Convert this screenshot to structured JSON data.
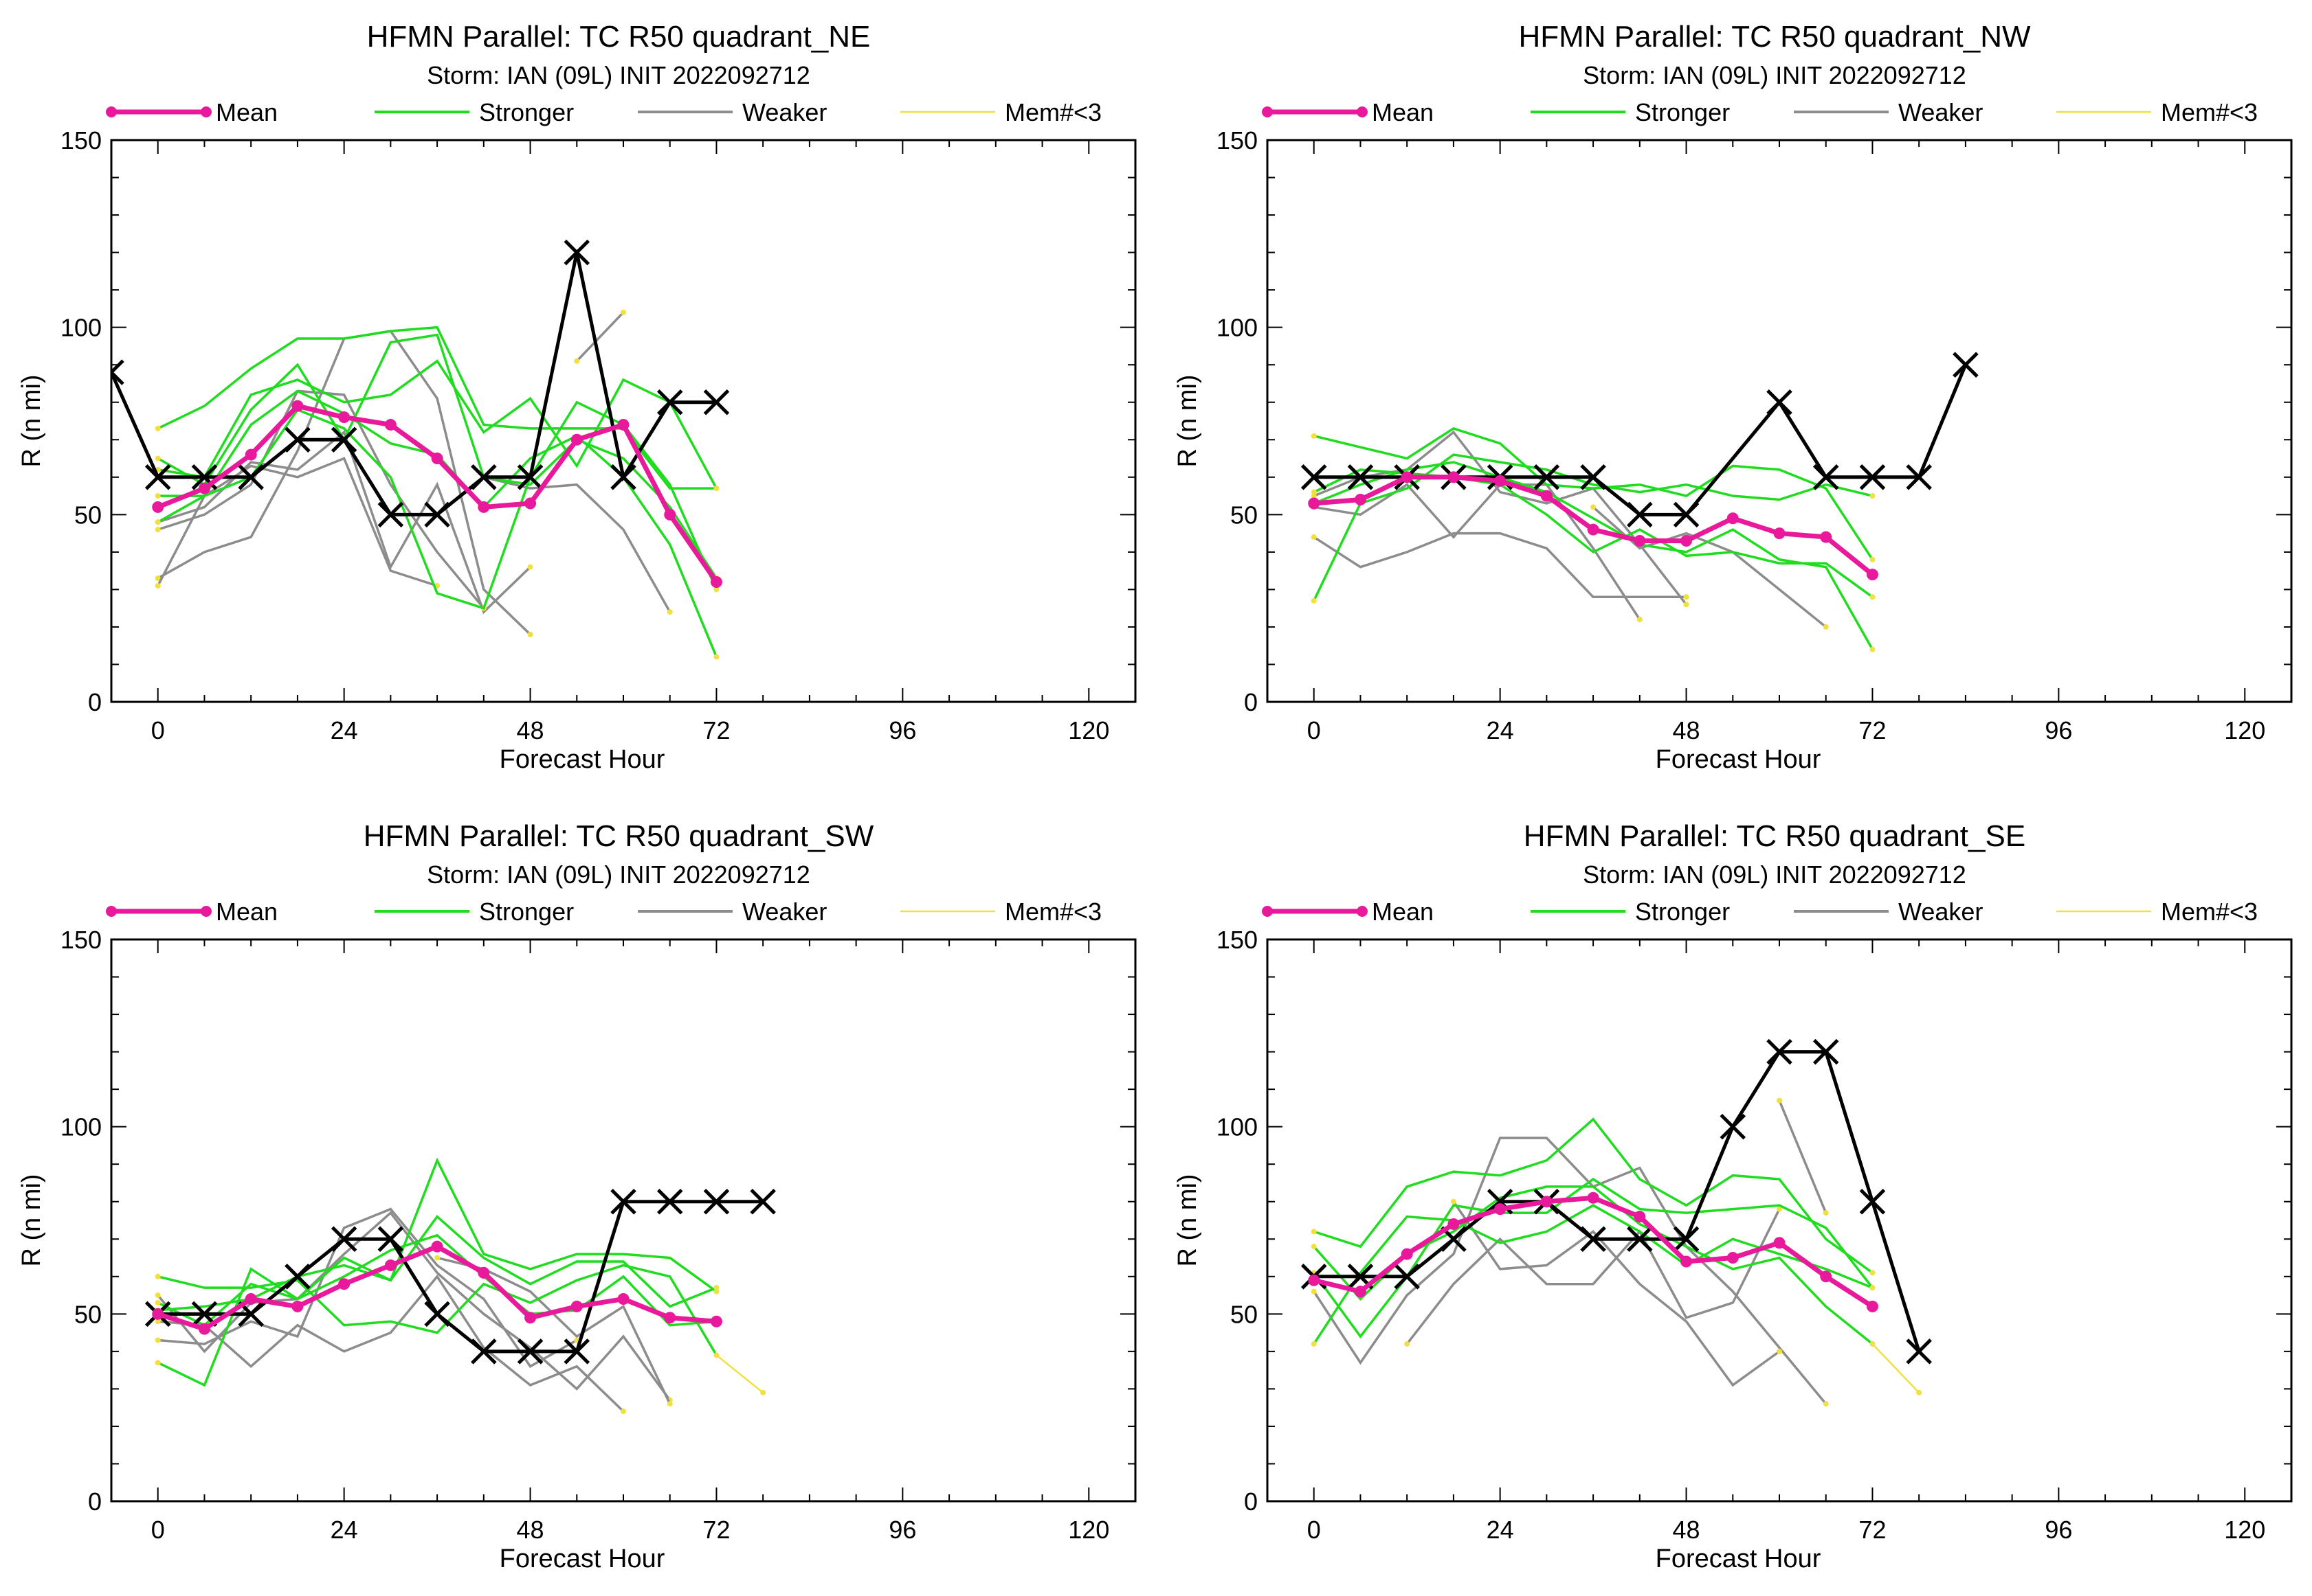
{
  "colors": {
    "mean": "#e8199b",
    "stronger": "#1fdc1f",
    "weaker": "#8c8c8c",
    "mem_lt3": "#f0e040",
    "best_track": "#000000"
  },
  "chart_data": [
    {
      "type": "line",
      "title": "HFMN Parallel: TC  R50 quadrant_NE",
      "subtitle": "Storm: IAN (09L) INIT 2022092712",
      "xlabel": "Forecast Hour",
      "ylabel": "R (n mi)",
      "xlim": [
        -6,
        126
      ],
      "ylim": [
        0,
        150
      ],
      "xticks": [
        0,
        24,
        48,
        72,
        96,
        120
      ],
      "yticks": [
        0,
        50,
        100,
        150
      ],
      "grid": false,
      "legend": [
        "Mean",
        "Stronger",
        "Weaker",
        "Mem#<3"
      ],
      "legend_placement": "top",
      "series": [
        {
          "name": "Mean",
          "color_key": "mean",
          "x": [
            0,
            6,
            12,
            18,
            24,
            30,
            36,
            42,
            48,
            54,
            60,
            66,
            72
          ],
          "y": [
            52,
            57,
            66,
            79,
            76,
            74,
            65,
            52,
            53,
            70,
            74,
            50,
            32
          ]
        },
        {
          "x": [
            -6,
            0,
            6,
            12,
            18,
            24,
            30,
            36,
            42,
            48,
            54,
            60,
            66,
            72
          ],
          "y": [
            88,
            60,
            60,
            60,
            70,
            70,
            50,
            50,
            60,
            60,
            120,
            60,
            80,
            80
          ]
        }
      ]
    },
    {
      "type": "line",
      "title": "HFMN Parallel: TC  R50 quadrant_NW",
      "subtitle": "Storm: IAN (09L) INIT 2022092712",
      "xlabel": "Forecast Hour",
      "ylabel": "R (n mi)",
      "xlim": [
        -6,
        126
      ],
      "ylim": [
        0,
        150
      ],
      "xticks": [
        0,
        24,
        48,
        72,
        96,
        120
      ],
      "yticks": [
        0,
        50,
        100,
        150
      ],
      "grid": false,
      "legend": [
        "Mean",
        "Stronger",
        "Weaker",
        "Mem#<3"
      ],
      "legend_placement": "top",
      "series": [
        {
          "name": "Mean",
          "color_key": "mean",
          "x": [
            0,
            6,
            12,
            18,
            24,
            30,
            36,
            42,
            48,
            54,
            60,
            66,
            72
          ],
          "y": [
            53,
            54,
            60,
            60,
            59,
            55,
            46,
            43,
            43,
            49,
            45,
            44,
            34
          ]
        },
        {
          "x": [
            0,
            6,
            12,
            18,
            24,
            30,
            36,
            42,
            48,
            60,
            66,
            72,
            78,
            84
          ],
          "y": [
            60,
            60,
            60,
            60,
            60,
            60,
            60,
            50,
            50,
            80,
            60,
            60,
            60,
            90
          ]
        }
      ]
    },
    {
      "type": "line",
      "title": "HFMN Parallel: TC  R50 quadrant_SW",
      "subtitle": "Storm: IAN (09L) INIT 2022092712",
      "xlabel": "Forecast Hour",
      "ylabel": "R (n mi)",
      "xlim": [
        -6,
        126
      ],
      "ylim": [
        0,
        150
      ],
      "xticks": [
        0,
        24,
        48,
        72,
        96,
        120
      ],
      "yticks": [
        0,
        50,
        100,
        150
      ],
      "grid": false,
      "legend": [
        "Mean",
        "Stronger",
        "Weaker",
        "Mem#<3"
      ],
      "legend_placement": "top",
      "series": [
        {
          "name": "Mean",
          "color_key": "mean",
          "x": [
            0,
            6,
            12,
            18,
            24,
            30,
            36,
            42,
            48,
            54,
            60,
            66,
            72
          ],
          "y": [
            50,
            46,
            54,
            52,
            58,
            63,
            68,
            61,
            49,
            52,
            54,
            49,
            48
          ]
        },
        {
          "x": [
            0,
            6,
            12,
            18,
            24,
            30,
            36,
            42,
            48,
            54,
            60,
            66,
            72,
            78
          ],
          "y": [
            50,
            50,
            50,
            60,
            70,
            70,
            50,
            40,
            40,
            40,
            80,
            80,
            80,
            80
          ]
        }
      ]
    },
    {
      "type": "line",
      "title": "HFMN Parallel: TC  R50 quadrant_SE",
      "subtitle": "Storm: IAN (09L) INIT 2022092712",
      "xlabel": "Forecast Hour",
      "ylabel": "R (n mi)",
      "xlim": [
        -6,
        126
      ],
      "ylim": [
        0,
        150
      ],
      "xticks": [
        0,
        24,
        48,
        72,
        96,
        120
      ],
      "yticks": [
        0,
        50,
        100,
        150
      ],
      "grid": false,
      "legend": [
        "Mean",
        "Stronger",
        "Weaker",
        "Mem#<3"
      ],
      "legend_placement": "top",
      "series": [
        {
          "name": "Mean",
          "color_key": "mean",
          "x": [
            0,
            6,
            12,
            18,
            24,
            30,
            36,
            42,
            48,
            54,
            60,
            66,
            72
          ],
          "y": [
            59,
            56,
            66,
            74,
            78,
            80,
            81,
            76,
            64,
            65,
            69,
            60,
            52
          ]
        },
        {
          "x": [
            0,
            6,
            12,
            18,
            24,
            30,
            36,
            42,
            48,
            54,
            60,
            66,
            72,
            78
          ],
          "y": [
            60,
            60,
            60,
            70,
            80,
            80,
            70,
            70,
            70,
            100,
            120,
            120,
            80,
            40
          ]
        }
      ]
    }
  ]
}
